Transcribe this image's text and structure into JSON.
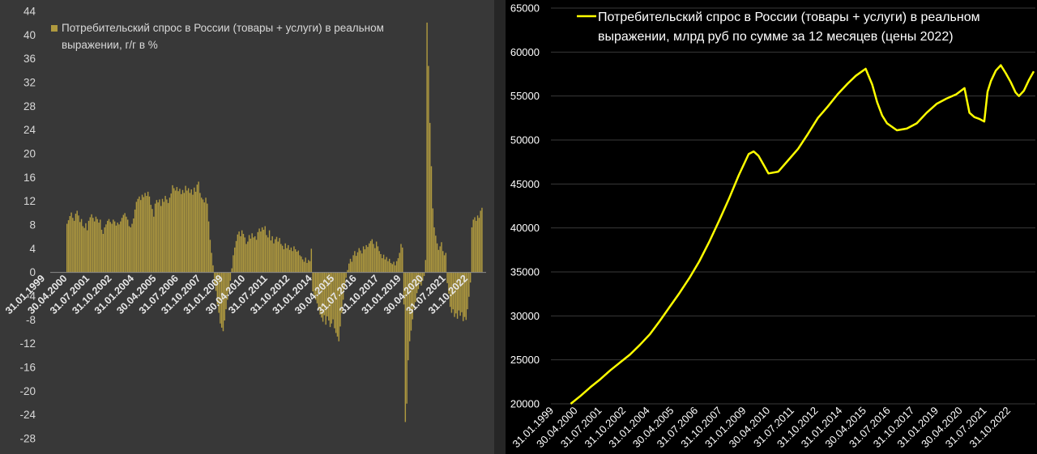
{
  "chart_data": [
    {
      "type": "bar",
      "title": "Потребительский спрос в России (товары + услуги) в реальном выражении, г/г в %",
      "legend": {
        "placement": "top-left",
        "lines": [
          "Потребительский спрос в России (товары + услуги) в реальном",
          "выражении, г/г в %"
        ]
      },
      "grid": false,
      "ylim": [
        -28,
        44
      ],
      "yticks": [
        "44",
        "40",
        "36",
        "32",
        "28",
        "24",
        "20",
        "16",
        "12",
        "8",
        "4",
        "0",
        "-4",
        "-8",
        "-12",
        "-16",
        "-20",
        "-24",
        "-28"
      ],
      "xticks": [
        "31.01.1999",
        "30.04.2000",
        "31.07.2001",
        "31.10.2002",
        "31.01.2004",
        "30.04.2005",
        "31.07.2006",
        "31.10.2007",
        "31.01.2009",
        "30.04.2010",
        "31.07.2011",
        "31.10.2012",
        "31.01.2014",
        "30.04.2015",
        "31.07.2016",
        "31.10.2017",
        "31.01.2019",
        "30.04.2020",
        "31.07.2021",
        "31.10.2022"
      ],
      "x_start": "2000-01",
      "x_frequency": "monthly",
      "values": [
        8.2,
        8.8,
        9.5,
        10.1,
        9.2,
        8.7,
        9.9,
        10.4,
        9.6,
        8.5,
        9.0,
        7.8,
        7.5,
        8.3,
        7.1,
        8.7,
        9.3,
        9.8,
        9.2,
        8.6,
        9.4,
        9.0,
        8.4,
        8.9,
        7.2,
        6.5,
        7.6,
        8.1,
        8.7,
        9.0,
        8.5,
        8.2,
        8.9,
        8.6,
        7.9,
        8.4,
        8.1,
        8.6,
        9.2,
        9.7,
        10.0,
        9.4,
        8.9,
        7.8,
        7.6,
        8.2,
        9.1,
        10.6,
        11.9,
        12.4,
        12.8,
        12.2,
        13.1,
        12.7,
        13.4,
        12.9,
        13.6,
        12.8,
        11.4,
        10.7,
        9.4,
        11.6,
        12.2,
        11.8,
        12.3,
        11.2,
        12.4,
        11.9,
        12.9,
        12.3,
        11.7,
        12.6,
        13.3,
        14.7,
        14.2,
        13.8,
        14.4,
        13.7,
        14.1,
        13.2,
        13.9,
        13.4,
        14.6,
        13.8,
        14.2,
        13.4,
        14.0,
        13.1,
        14.3,
        13.6,
        14.8,
        15.3,
        13.4,
        12.6,
        12.3,
        11.8,
        12.6,
        11.6,
        8.6,
        5.5,
        3.3,
        1.2,
        -2.2,
        -3.1,
        -5.4,
        -6.8,
        -8.6,
        -9.3,
        -9.9,
        -8.1,
        -6.2,
        -4.6,
        -3.2,
        -1.4,
        0.7,
        2.9,
        4.2,
        5.3,
        6.4,
        6.9,
        6.1,
        7.1,
        6.5,
        5.9,
        4.8,
        5.2,
        6.3,
        5.7,
        6.6,
        5.9,
        6.1,
        5.5,
        6.8,
        7.4,
        6.9,
        7.6,
        7.2,
        7.8,
        6.3,
        5.9,
        7.1,
        5.4,
        6.1,
        4.9,
        5.6,
        6.0,
        5.2,
        5.8,
        4.8,
        4.5,
        3.9,
        4.9,
        4.1,
        4.6,
        3.8,
        4.2,
        3.6,
        4.4,
        3.9,
        3.5,
        3.7,
        2.9,
        2.7,
        2.2,
        1.8,
        2.5,
        1.6,
        2.1,
        1.9,
        4.0,
        -3.2,
        -3.8,
        -4.6,
        -5.2,
        -6.3,
        -7.1,
        -7.6,
        -8.3,
        -7.2,
        -8.8,
        -7.4,
        -8.1,
        -9.2,
        -8.6,
        -7.9,
        -9.4,
        -10.2,
        -10.8,
        -11.6,
        -9.1,
        -6.8,
        -4.6,
        -2.7,
        -0.9,
        0.4,
        1.5,
        2.3,
        1.8,
        2.9,
        3.6,
        2.8,
        3.4,
        4.1,
        3.7,
        3.2,
        4.4,
        3.9,
        4.6,
        4.3,
        4.9,
        5.3,
        5.6,
        4.8,
        4.1,
        5.2,
        4.4,
        3.6,
        3.1,
        2.4,
        3.0,
        2.2,
        2.6,
        1.9,
        2.3,
        1.6,
        1.4,
        1.8,
        1.2,
        1.9,
        2.4,
        3.3,
        4.8,
        4.2,
        -5.4,
        -25.2,
        -22.1,
        -14.8,
        -11.6,
        -9.8,
        -7.9,
        -6.1,
        -5.0,
        -3.5,
        -2.8,
        -1.9,
        -2.2,
        -1.4,
        -0.6,
        2.1,
        42.1,
        34.8,
        25.2,
        17.9,
        10.8,
        7.6,
        6.2,
        4.9,
        3.8,
        4.4,
        5.1,
        3.6,
        2.9,
        3.3,
        -1.8,
        -3.6,
        -5.8,
        -6.8,
        -6.2,
        -7.5,
        -6.9,
        -7.8,
        -6.4,
        -7.3,
        -6.7,
        -8.2,
        -7.5,
        -8.0,
        -6.2,
        -4.1,
        -1.7,
        7.6,
        8.9,
        9.3,
        8.7,
        9.6,
        9.2,
        10.4,
        10.9
      ],
      "bar_color": "#b09a3f"
    },
    {
      "type": "line",
      "title": "Потребительский спрос в России (товары + услуги) в реальном выражении, млрд руб по сумме за 12 месяцев (цены 2022)",
      "legend": {
        "placement": "top",
        "lines": [
          "Потребительский спрос в России (товары + услуги) в реальном",
          "выражении, млрд руб по сумме за 12 месяцев (цены 2022)"
        ]
      },
      "grid": true,
      "ylim": [
        20000,
        65000
      ],
      "yticks": [
        "65000",
        "60000",
        "55000",
        "50000",
        "45000",
        "40000",
        "35000",
        "30000",
        "25000",
        "20000"
      ],
      "xticks": [
        "31.01.1999",
        "30.04.2000",
        "31.07.2001",
        "31.10.2002",
        "31.01.2004",
        "30.04.2005",
        "31.07.2006",
        "31.10.2007",
        "31.01.2009",
        "30.04.2010",
        "31.07.2011",
        "31.10.2012",
        "31.01.2014",
        "30.04.2015",
        "31.07.2016",
        "31.10.2017",
        "31.01.2019",
        "30.04.2020",
        "31.07.2021",
        "31.10.2022"
      ],
      "x": [
        "2000-01",
        "2000-07",
        "2001-01",
        "2001-07",
        "2002-01",
        "2002-07",
        "2003-01",
        "2003-07",
        "2004-01",
        "2004-07",
        "2005-01",
        "2005-07",
        "2006-01",
        "2006-07",
        "2007-01",
        "2007-07",
        "2008-01",
        "2008-07",
        "2009-01",
        "2009-04",
        "2009-07",
        "2009-10",
        "2010-01",
        "2010-07",
        "2011-01",
        "2011-07",
        "2012-01",
        "2012-07",
        "2013-01",
        "2013-07",
        "2014-01",
        "2014-06",
        "2014-09",
        "2014-12",
        "2015-04",
        "2015-07",
        "2015-10",
        "2016-01",
        "2016-07",
        "2017-01",
        "2017-07",
        "2018-01",
        "2018-07",
        "2019-01",
        "2019-07",
        "2019-12",
        "2020-03",
        "2020-06",
        "2020-09",
        "2020-12",
        "2021-02",
        "2021-04",
        "2021-07",
        "2021-10",
        "2022-01",
        "2022-04",
        "2022-07",
        "2022-09",
        "2022-12",
        "2023-03",
        "2023-06"
      ],
      "y": [
        20000,
        20900,
        21900,
        22800,
        23800,
        24700,
        25600,
        26700,
        27900,
        29400,
        31000,
        32600,
        34300,
        36200,
        38400,
        40800,
        43300,
        46000,
        48400,
        48700,
        48200,
        47200,
        46200,
        46400,
        47700,
        49000,
        50700,
        52500,
        53800,
        55200,
        56400,
        57300,
        57700,
        58100,
        56300,
        54300,
        52800,
        51900,
        51100,
        51300,
        51900,
        53100,
        54100,
        54700,
        55200,
        55900,
        53100,
        52600,
        52400,
        52100,
        55500,
        56700,
        57900,
        58500,
        57600,
        56600,
        55400,
        55000,
        55600,
        56800,
        57800
      ],
      "line_color": "#ffff00"
    }
  ]
}
